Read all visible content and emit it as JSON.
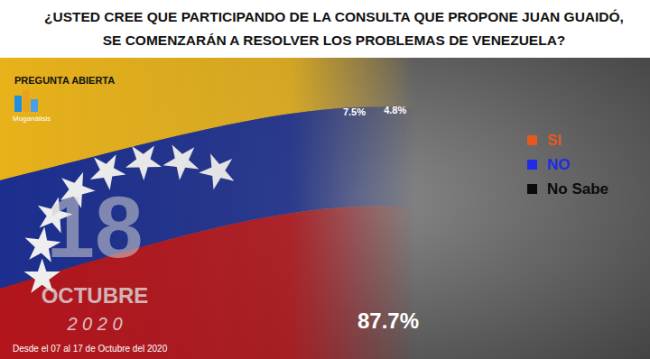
{
  "chart_data": {
    "type": "pie",
    "title": [
      "¿USTED CREE QUE PARTICIPANDO DE LA CONSULTA QUE PROPONE JUAN GUAIDÓ,",
      "SE COMENZARÁN A RESOLVER LOS PROBLEMAS DE VENEZUELA?"
    ],
    "annotations": [
      "PREGUNTA ABIERTA",
      "Moganálisis",
      "18",
      "OCTUBRE",
      "2 0 2 0",
      "Desde el 07 al 17 de Octubre del 2020"
    ],
    "categories": [
      "SI",
      "NO",
      "No Sabe"
    ],
    "values": [
      4.8,
      87.7,
      7.5
    ],
    "value_labels": [
      "4.8%",
      "87.7%",
      "7.5%"
    ],
    "colors": [
      "#e8571e",
      "#1f2be8",
      "#0b0b0b"
    ],
    "data_labels": true,
    "legend": "right"
  }
}
